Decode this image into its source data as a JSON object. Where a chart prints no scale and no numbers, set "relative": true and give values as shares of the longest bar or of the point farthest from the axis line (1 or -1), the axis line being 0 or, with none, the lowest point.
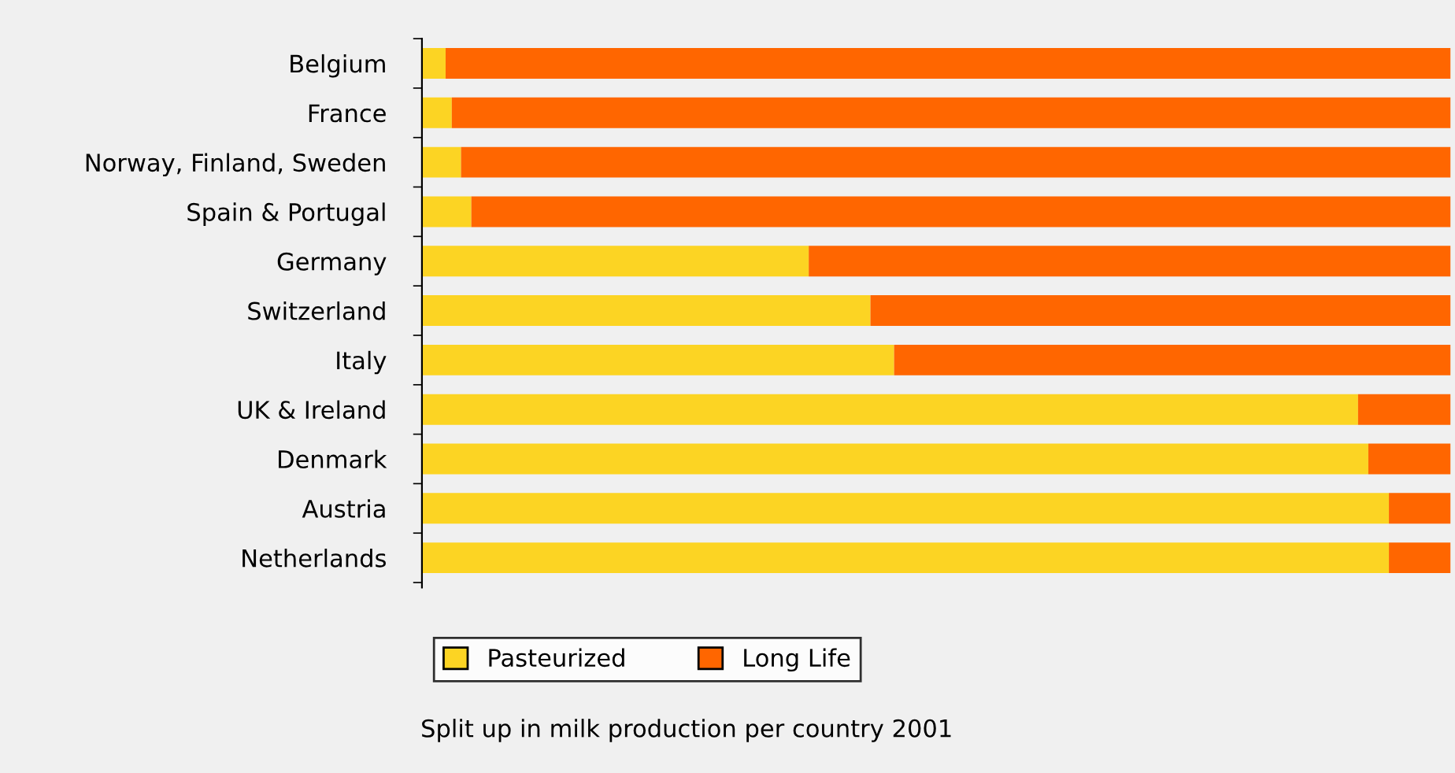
{
  "chart_data": {
    "type": "bar",
    "orientation": "horizontal",
    "stacked": true,
    "relative": true,
    "categories": [
      "Belgium",
      "France",
      "Norway, Finland, Sweden",
      "Spain & Portugal",
      "Germany",
      "Switzerland",
      "Italy",
      "UK & Ireland",
      "Denmark",
      "Austria",
      "Netherlands"
    ],
    "series": [
      {
        "name": "Pasteurized",
        "color": "#fcd423",
        "values": [
          0.023,
          0.029,
          0.038,
          0.048,
          0.376,
          0.436,
          0.459,
          0.91,
          0.92,
          0.94,
          0.94
        ]
      },
      {
        "name": "Long Life",
        "color": "#ff6600",
        "values": [
          0.977,
          0.971,
          0.962,
          0.952,
          0.624,
          0.564,
          0.541,
          0.09,
          0.08,
          0.06,
          0.06
        ]
      }
    ],
    "legend": "bottom",
    "grid": false,
    "annotations": [
      "Split up in milk production per country 2001"
    ]
  }
}
